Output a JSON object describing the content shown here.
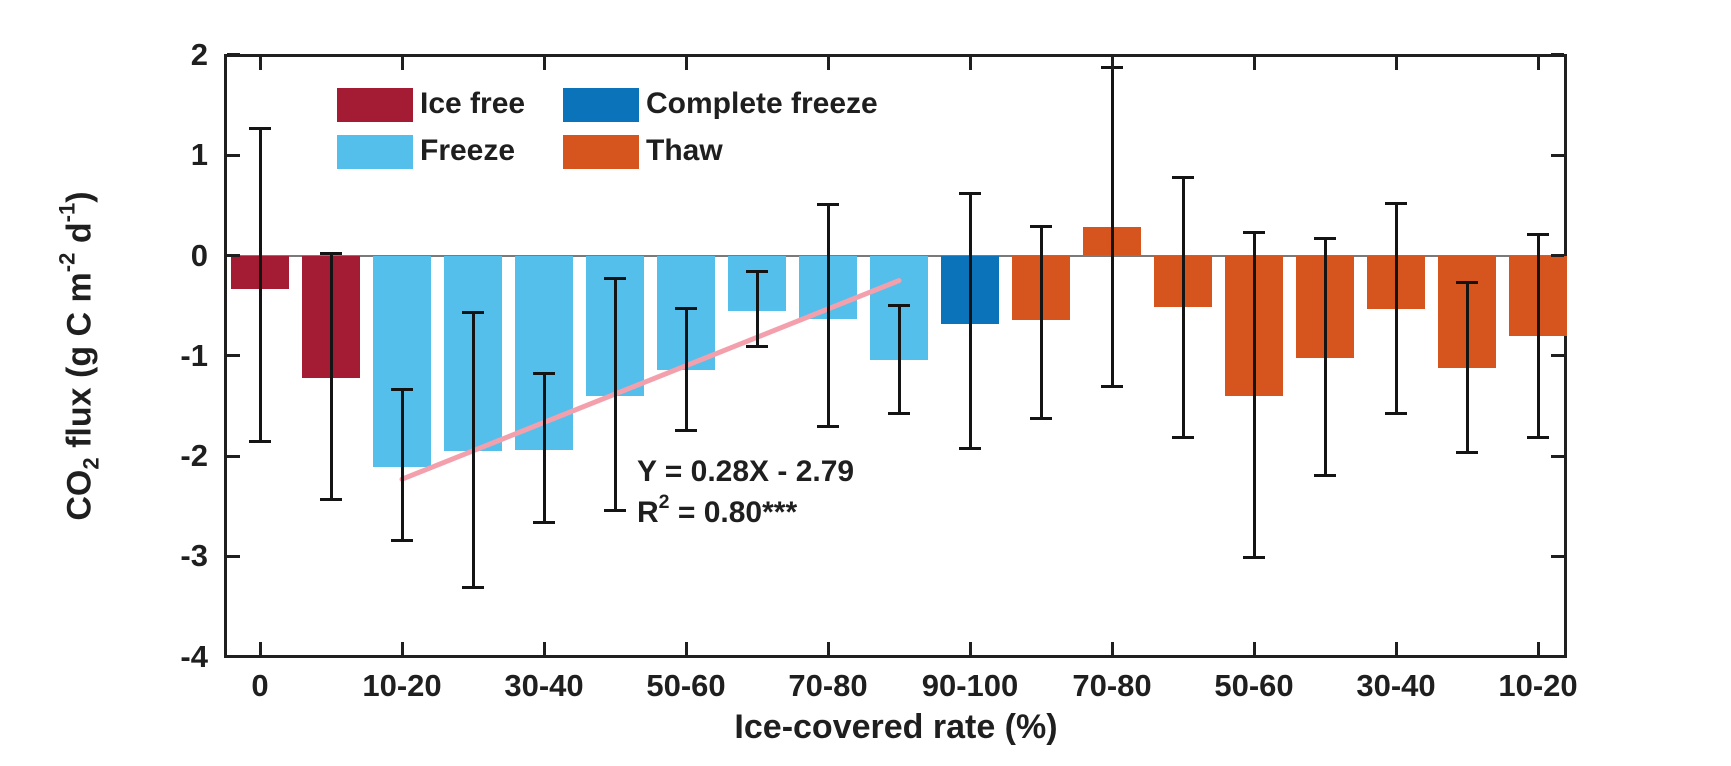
{
  "figure": {
    "background": "#ffffff",
    "text_color": "#1f1f1f"
  },
  "chart_data": {
    "type": "bar",
    "title": "",
    "xlabel": "Ice-covered rate (%)",
    "ylabel": "CO2 flux (g C m-2 d-1)",
    "ylabel_parts": [
      {
        "t": "CO"
      },
      {
        "t": "2",
        "style": "sub"
      },
      {
        "t": " flux (g C m"
      },
      {
        "t": "-2",
        "style": "sup"
      },
      {
        "t": " d"
      },
      {
        "t": "-1",
        "style": "sup"
      },
      {
        "t": ")"
      }
    ],
    "ylim": [
      -4,
      2
    ],
    "yticks": [
      2,
      1,
      0,
      -1,
      -2,
      -3,
      -4
    ],
    "xtick_labels": [
      "0",
      "10-20",
      "30-40",
      "50-60",
      "70-80",
      "90-100",
      "70-80",
      "50-60",
      "30-40",
      "10-20"
    ],
    "xtick_bar_positions": [
      1,
      3,
      5,
      7,
      9,
      11,
      13,
      15,
      17,
      19
    ],
    "grid": false,
    "zero_line": true,
    "zero_line_color": "#7a7a7a",
    "series_colors": {
      "ice_free": "#A31C33",
      "freeze": "#55BFEC",
      "complete_freeze": "#0A73B9",
      "thaw": "#D6551E"
    },
    "bars": [
      {
        "group": "ice_free",
        "value": -0.33,
        "err_high": 1.27,
        "err_low": -1.86
      },
      {
        "group": "ice_free",
        "value": -1.22,
        "err_high": 0.02,
        "err_low": -2.44
      },
      {
        "group": "freeze",
        "value": -2.1,
        "err_high": -1.33,
        "err_low": -2.85
      },
      {
        "group": "freeze",
        "value": -1.94,
        "err_high": -0.56,
        "err_low": -3.31
      },
      {
        "group": "freeze",
        "value": -1.93,
        "err_high": -1.17,
        "err_low": -2.67
      },
      {
        "group": "freeze",
        "value": -1.4,
        "err_high": -0.22,
        "err_low": -2.55
      },
      {
        "group": "freeze",
        "value": -1.14,
        "err_high": -0.52,
        "err_low": -1.75
      },
      {
        "group": "freeze",
        "value": -0.55,
        "err_high": -0.15,
        "err_low": -0.91
      },
      {
        "group": "freeze",
        "value": -0.63,
        "err_high": 0.51,
        "err_low": -1.71
      },
      {
        "group": "freeze",
        "value": -1.04,
        "err_high": -0.49,
        "err_low": -1.58
      },
      {
        "group": "complete_freeze",
        "value": -0.68,
        "err_high": 0.62,
        "err_low": -1.93
      },
      {
        "group": "thaw",
        "value": -0.64,
        "err_high": 0.29,
        "err_low": -1.63
      },
      {
        "group": "thaw",
        "value": 0.28,
        "err_high": 1.88,
        "err_low": -1.31
      },
      {
        "group": "thaw",
        "value": -0.51,
        "err_high": 0.78,
        "err_low": -1.82
      },
      {
        "group": "thaw",
        "value": -1.4,
        "err_high": 0.23,
        "err_low": -3.02
      },
      {
        "group": "thaw",
        "value": -1.02,
        "err_high": 0.17,
        "err_low": -2.2
      },
      {
        "group": "thaw",
        "value": -0.53,
        "err_high": 0.52,
        "err_low": -1.58
      },
      {
        "group": "thaw",
        "value": -1.12,
        "err_high": -0.26,
        "err_low": -1.97
      },
      {
        "group": "thaw",
        "value": -0.8,
        "err_high": 0.21,
        "err_low": -1.82
      }
    ],
    "legend": {
      "position": "top-left-inside",
      "items": [
        {
          "label": "Ice free",
          "color": "#A31C33",
          "row": 0,
          "col": 0
        },
        {
          "label": "Freeze",
          "color": "#55BFEC",
          "row": 1,
          "col": 0
        },
        {
          "label": "Complete freeze",
          "color": "#0A73B9",
          "row": 0,
          "col": 1
        },
        {
          "label": "Thaw",
          "color": "#D6551E",
          "row": 1,
          "col": 1
        }
      ]
    },
    "regression": {
      "label_line1": "Y = 0.28X - 2.79",
      "label_line2": "R2 = 0.80***",
      "label_line2_parts": [
        {
          "t": "R"
        },
        {
          "t": "2",
          "style": "sup"
        },
        {
          "t": " = 0.80***"
        }
      ],
      "color": "#F3A0AC",
      "start_bar": 3,
      "end_bar": 10,
      "start_value": -2.23,
      "end_value": -0.25
    }
  }
}
